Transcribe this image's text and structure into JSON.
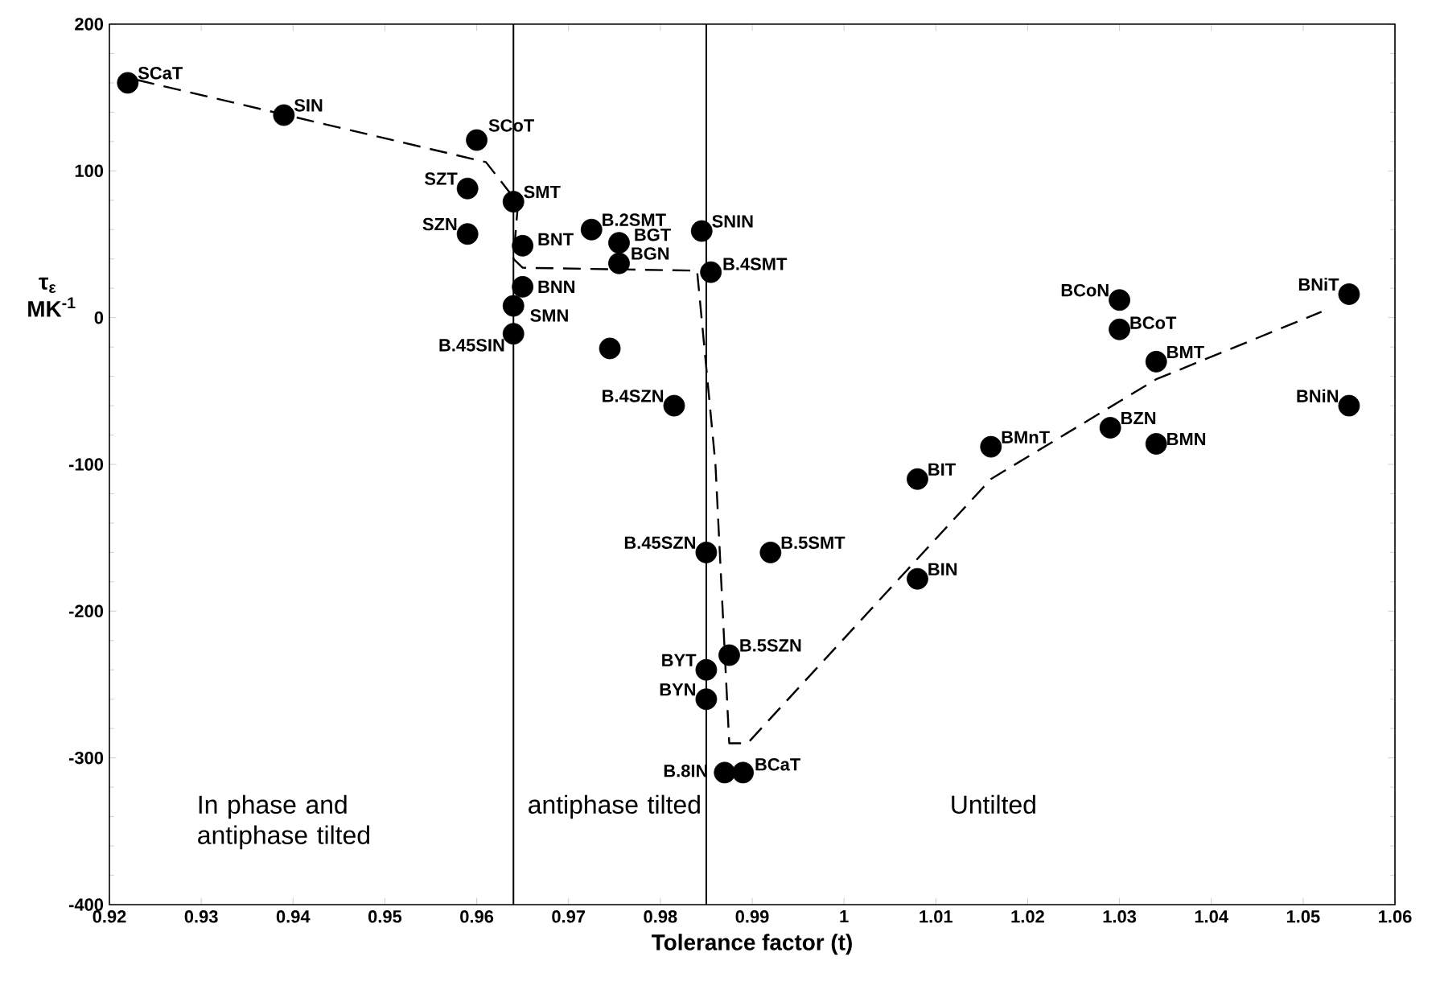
{
  "chart_data": {
    "type": "scatter",
    "xlabel": "Tolerance factor (t)",
    "ylabel": "τ$_{ε}$ MK$^{-1}$",
    "xlim": [
      0.92,
      1.06
    ],
    "ylim": [
      -400,
      200
    ],
    "xticks": [
      0.92,
      0.93,
      0.94,
      0.95,
      0.96,
      0.97,
      0.98,
      0.99,
      1,
      1.01,
      1.02,
      1.03,
      1.04,
      1.05,
      1.06
    ],
    "yticks": [
      -400,
      -300,
      -200,
      -100,
      0,
      100,
      200
    ],
    "series": [
      {
        "type": "scatter",
        "color": "#000000",
        "marker": "circle",
        "x": [
          0.922,
          0.939,
          0.96,
          0.959,
          0.959,
          0.964,
          0.965,
          0.9725,
          0.9755,
          0.9755,
          0.9845,
          0.9855,
          0.965,
          0.964,
          0.964,
          0.9745,
          0.9815,
          0.985,
          0.992,
          1.008,
          1.008,
          0.9875,
          0.985,
          0.985,
          0.987,
          0.989,
          1.016,
          1.029,
          1.034,
          1.034,
          1.03,
          1.03,
          1.055,
          1.055
        ],
        "values": [
          160,
          138,
          121,
          88,
          57,
          79,
          49,
          60,
          51,
          37,
          59,
          31,
          21,
          8,
          -11,
          -21,
          -60,
          -160,
          -160,
          -110,
          -178,
          -230,
          -240,
          -260,
          -310,
          -310,
          -88,
          -75,
          -86,
          -30,
          12,
          -8,
          16,
          -60
        ]
      },
      {
        "type": "line",
        "color": "#000000",
        "marker": "none",
        "line_style": "dashed",
        "x": [
          0.923,
          0.961,
          0.9645,
          0.964,
          0.965,
          0.984,
          0.986,
          0.9875,
          0.9895,
          1.016,
          1.034,
          1.052
        ],
        "values": [
          162,
          106,
          78,
          40,
          34,
          32,
          -100,
          -290,
          -290,
          -110,
          -42,
          4
        ]
      }
    ],
    "ref_lines": [
      {
        "axis": "x",
        "value": 0.964,
        "color": "#000000"
      },
      {
        "axis": "x",
        "value": 0.985,
        "color": "#000000"
      }
    ],
    "annotations": [
      {
        "text": "SCaT",
        "x": 0.922,
        "y": 160
      },
      {
        "text": "SIN",
        "x": 0.939,
        "y": 138
      },
      {
        "text": "SCoT",
        "x": 0.96,
        "y": 121
      },
      {
        "text": "SZT",
        "x": 0.959,
        "y": 88
      },
      {
        "text": "SZN",
        "x": 0.959,
        "y": 57
      },
      {
        "text": "SMT",
        "x": 0.964,
        "y": 79
      },
      {
        "text": "BNT",
        "x": 0.965,
        "y": 49
      },
      {
        "text": "B.2SMT",
        "x": 0.9725,
        "y": 60
      },
      {
        "text": "BGT",
        "x": 0.9755,
        "y": 51
      },
      {
        "text": "BGN",
        "x": 0.9755,
        "y": 37
      },
      {
        "text": "SNIN",
        "x": 0.9845,
        "y": 59
      },
      {
        "text": "B.4SMT",
        "x": 0.9855,
        "y": 31
      },
      {
        "text": "BNN",
        "x": 0.965,
        "y": 21
      },
      {
        "text": "SMN",
        "x": 0.964,
        "y": 8
      },
      {
        "text": "B.45SIN",
        "x": 0.964,
        "y": -11
      },
      {
        "text": "B.4SZN",
        "x": 0.9815,
        "y": -60
      },
      {
        "text": "B.45SZN",
        "x": 0.985,
        "y": -160
      },
      {
        "text": "B.5SMT",
        "x": 0.992,
        "y": -160
      },
      {
        "text": "BIT",
        "x": 1.008,
        "y": -110
      },
      {
        "text": "BIN",
        "x": 1.008,
        "y": -178
      },
      {
        "text": "B.5SZN",
        "x": 0.9875,
        "y": -230
      },
      {
        "text": "BYT",
        "x": 0.985,
        "y": -240
      },
      {
        "text": "BYN",
        "x": 0.985,
        "y": -260
      },
      {
        "text": "B.8IN",
        "x": 0.987,
        "y": -310
      },
      {
        "text": "BCaT",
        "x": 0.989,
        "y": -310
      },
      {
        "text": "BMnT",
        "x": 1.016,
        "y": -88
      },
      {
        "text": "BZN",
        "x": 1.029,
        "y": -75
      },
      {
        "text": "BMN",
        "x": 1.034,
        "y": -86
      },
      {
        "text": "BMT",
        "x": 1.034,
        "y": -30
      },
      {
        "text": "BCoN",
        "x": 1.03,
        "y": 12
      },
      {
        "text": "BCoT",
        "x": 1.03,
        "y": -8
      },
      {
        "text": "BNiT",
        "x": 1.055,
        "y": 16
      },
      {
        "text": "BNiN",
        "x": 1.055,
        "y": -60
      },
      "In phase and antiphase tilted",
      "antiphase tilted",
      "Untilted"
    ]
  }
}
